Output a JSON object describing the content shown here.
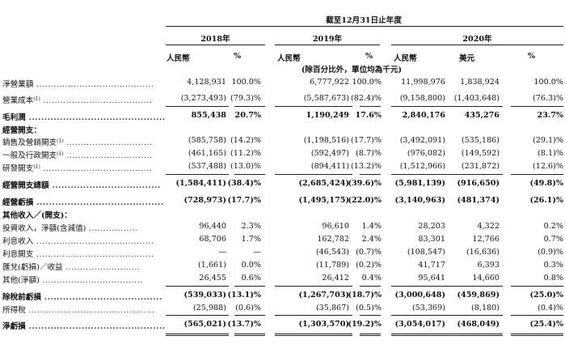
{
  "header": {
    "period": "截至12月31日止年度",
    "years": [
      "2018年",
      "2019年",
      "2020年"
    ],
    "currencies": [
      "人民幣",
      "%",
      "人民幣",
      "%",
      "人民幣",
      "美元",
      "%"
    ],
    "unit_note": "(除百分比外，單位均為千元)"
  },
  "rows": [
    {
      "label": "淨營業額",
      "bold": false,
      "header": false,
      "values": [
        "4,128,931",
        "100.0%",
        "6,777,922",
        "100.0%",
        "11,998,976",
        "1,838,924",
        "100.0%"
      ]
    },
    {
      "label": "營業成本",
      "sup": "(1)",
      "bold": false,
      "header": false,
      "values": [
        "(3,273,493)",
        "(79.3)%",
        "(5,587,673)",
        "(82.4)%",
        "(9,158,800)",
        "(1,403,648)",
        "(76.3)%"
      ]
    },
    {
      "label": "毛利潤",
      "bold": true,
      "header": false,
      "values": [
        "855,438",
        "20.7%",
        "1,190,249",
        "17.6%",
        "2,840,176",
        "435,276",
        "23.7%"
      ]
    },
    {
      "label": "經營開支：",
      "bold": true,
      "header": true,
      "values": []
    },
    {
      "label": "銷售及營銷開支",
      "sup": "(1)",
      "bold": false,
      "header": false,
      "values": [
        "(585,758)",
        "(14.2)%",
        "(1,198,516)",
        "(17.7)%",
        "(3,492,091)",
        "(535,186)",
        "(29.1)%"
      ]
    },
    {
      "label": "一般及行政開支",
      "sup": "(1)",
      "bold": false,
      "header": false,
      "values": [
        "(461,165)",
        "(11.2)%",
        "(592,497)",
        "(8.7)%",
        "(976,082)",
        "(149,592)",
        "(8.1)%"
      ]
    },
    {
      "label": "研發開支",
      "sup": "(1)",
      "bold": false,
      "header": false,
      "values": [
        "(537,488)",
        "(13.0)%",
        "(894,411)",
        "(13.2)%",
        "(1,512,966)",
        "(231,872)",
        "(12.6)%"
      ]
    },
    {
      "label": "經營開支總額",
      "bold": true,
      "header": false,
      "values": [
        "(1,584,411)",
        "(38.4)%",
        "(2,685,424)",
        "(39.6)%",
        "(5,981,139)",
        "(916,650)",
        "(49.8)%"
      ]
    },
    {
      "label": "經營虧損",
      "bold": true,
      "header": false,
      "values": [
        "(728,973)",
        "(17.7)%",
        "(1,495,175)",
        "(22.0)%",
        "(3,140,963)",
        "(481,374)",
        "(26.1)%"
      ]
    },
    {
      "label": "其他收入／(開支)：",
      "bold": true,
      "header": true,
      "values": []
    },
    {
      "label": "投資收入，淨額(含減值)",
      "bold": false,
      "header": false,
      "values": [
        "96,440",
        "2.3%",
        "96,610",
        "1.4%",
        "28,203",
        "4,322",
        "0.2%"
      ]
    },
    {
      "label": "利息收入",
      "bold": false,
      "header": false,
      "values": [
        "68,706",
        "1.7%",
        "162,782",
        "2.4%",
        "83,301",
        "12,766",
        "0.7%"
      ]
    },
    {
      "label": "利息開支",
      "bold": false,
      "header": false,
      "values": [
        "—",
        "—",
        "(46,543)",
        "(0.7)%",
        "(108,547)",
        "(16,636)",
        "(0.9)%"
      ]
    },
    {
      "label": "匯兌(虧損)／收益",
      "bold": false,
      "header": false,
      "values": [
        "(1,661)",
        "0.0%",
        "(11,789)",
        "(0.2)%",
        "41,717",
        "6,393",
        "0.3%"
      ]
    },
    {
      "label": "其他(淨額)",
      "bold": false,
      "header": false,
      "values": [
        "26,455",
        "0.6%",
        "26,412",
        "0.4%",
        "95,641",
        "14,660",
        "0.8%"
      ]
    },
    {
      "label": "除稅前虧損",
      "bold": true,
      "header": false,
      "values": [
        "(539,033)",
        "(13.1)%",
        "(1,267,703)",
        "(18.7)%",
        "(3,000,648)",
        "(459,869)",
        "(25.0)%"
      ]
    },
    {
      "label": "所得稅",
      "bold": false,
      "header": false,
      "values": [
        "(25,988)",
        "(0.6)%",
        "(35,867)",
        "(0.5)%",
        "(53,369)",
        "(8,180)",
        "(0.4)%"
      ]
    },
    {
      "label": "淨虧損",
      "bold": true,
      "header": false,
      "values": [
        "(565,021)",
        "(13.7)%",
        "(1,303,570)",
        "(19.2)%",
        "(3,054,017)",
        "(468,049)",
        "(25.4)%"
      ]
    }
  ]
}
